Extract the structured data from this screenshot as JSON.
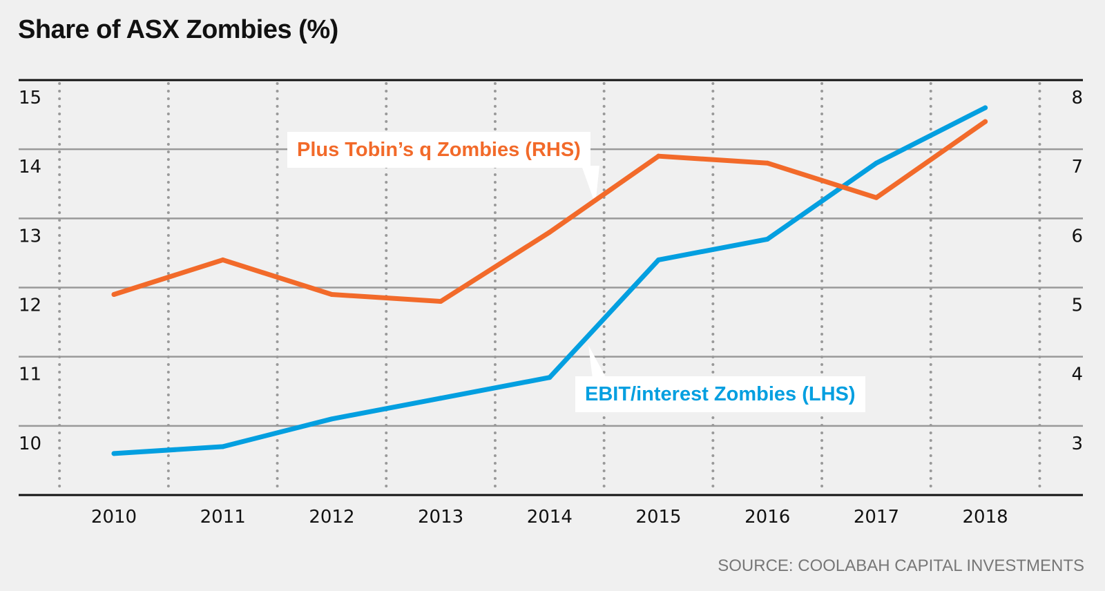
{
  "chart_data": {
    "type": "line",
    "title": "Share of ASX Zombies (%)",
    "source": "SOURCE: COOLABAH CAPITAL INVESTMENTS",
    "categories": [
      "2010",
      "2011",
      "2012",
      "2013",
      "2014",
      "2015",
      "2016",
      "2017",
      "2018"
    ],
    "y_left": {
      "ticks": [
        10,
        11,
        12,
        13,
        14,
        15
      ],
      "range": [
        9,
        15
      ]
    },
    "y_right": {
      "ticks": [
        3,
        4,
        5,
        6,
        7,
        8
      ],
      "range": [
        2,
        8
      ]
    },
    "grid": "horizontal solid, vertical dotted",
    "series": [
      {
        "name": "EBIT/interest Zombies (LHS)",
        "axis": "left",
        "color": "#039fe0",
        "values": [
          9.6,
          9.7,
          10.1,
          10.4,
          10.7,
          12.4,
          12.7,
          13.8,
          14.6
        ]
      },
      {
        "name": "Plus Tobin’s q Zombies (RHS)",
        "axis": "right",
        "color": "#f26a2a",
        "values": [
          4.9,
          5.4,
          4.9,
          4.8,
          5.8,
          6.9,
          6.8,
          6.3,
          7.4
        ]
      }
    ]
  }
}
